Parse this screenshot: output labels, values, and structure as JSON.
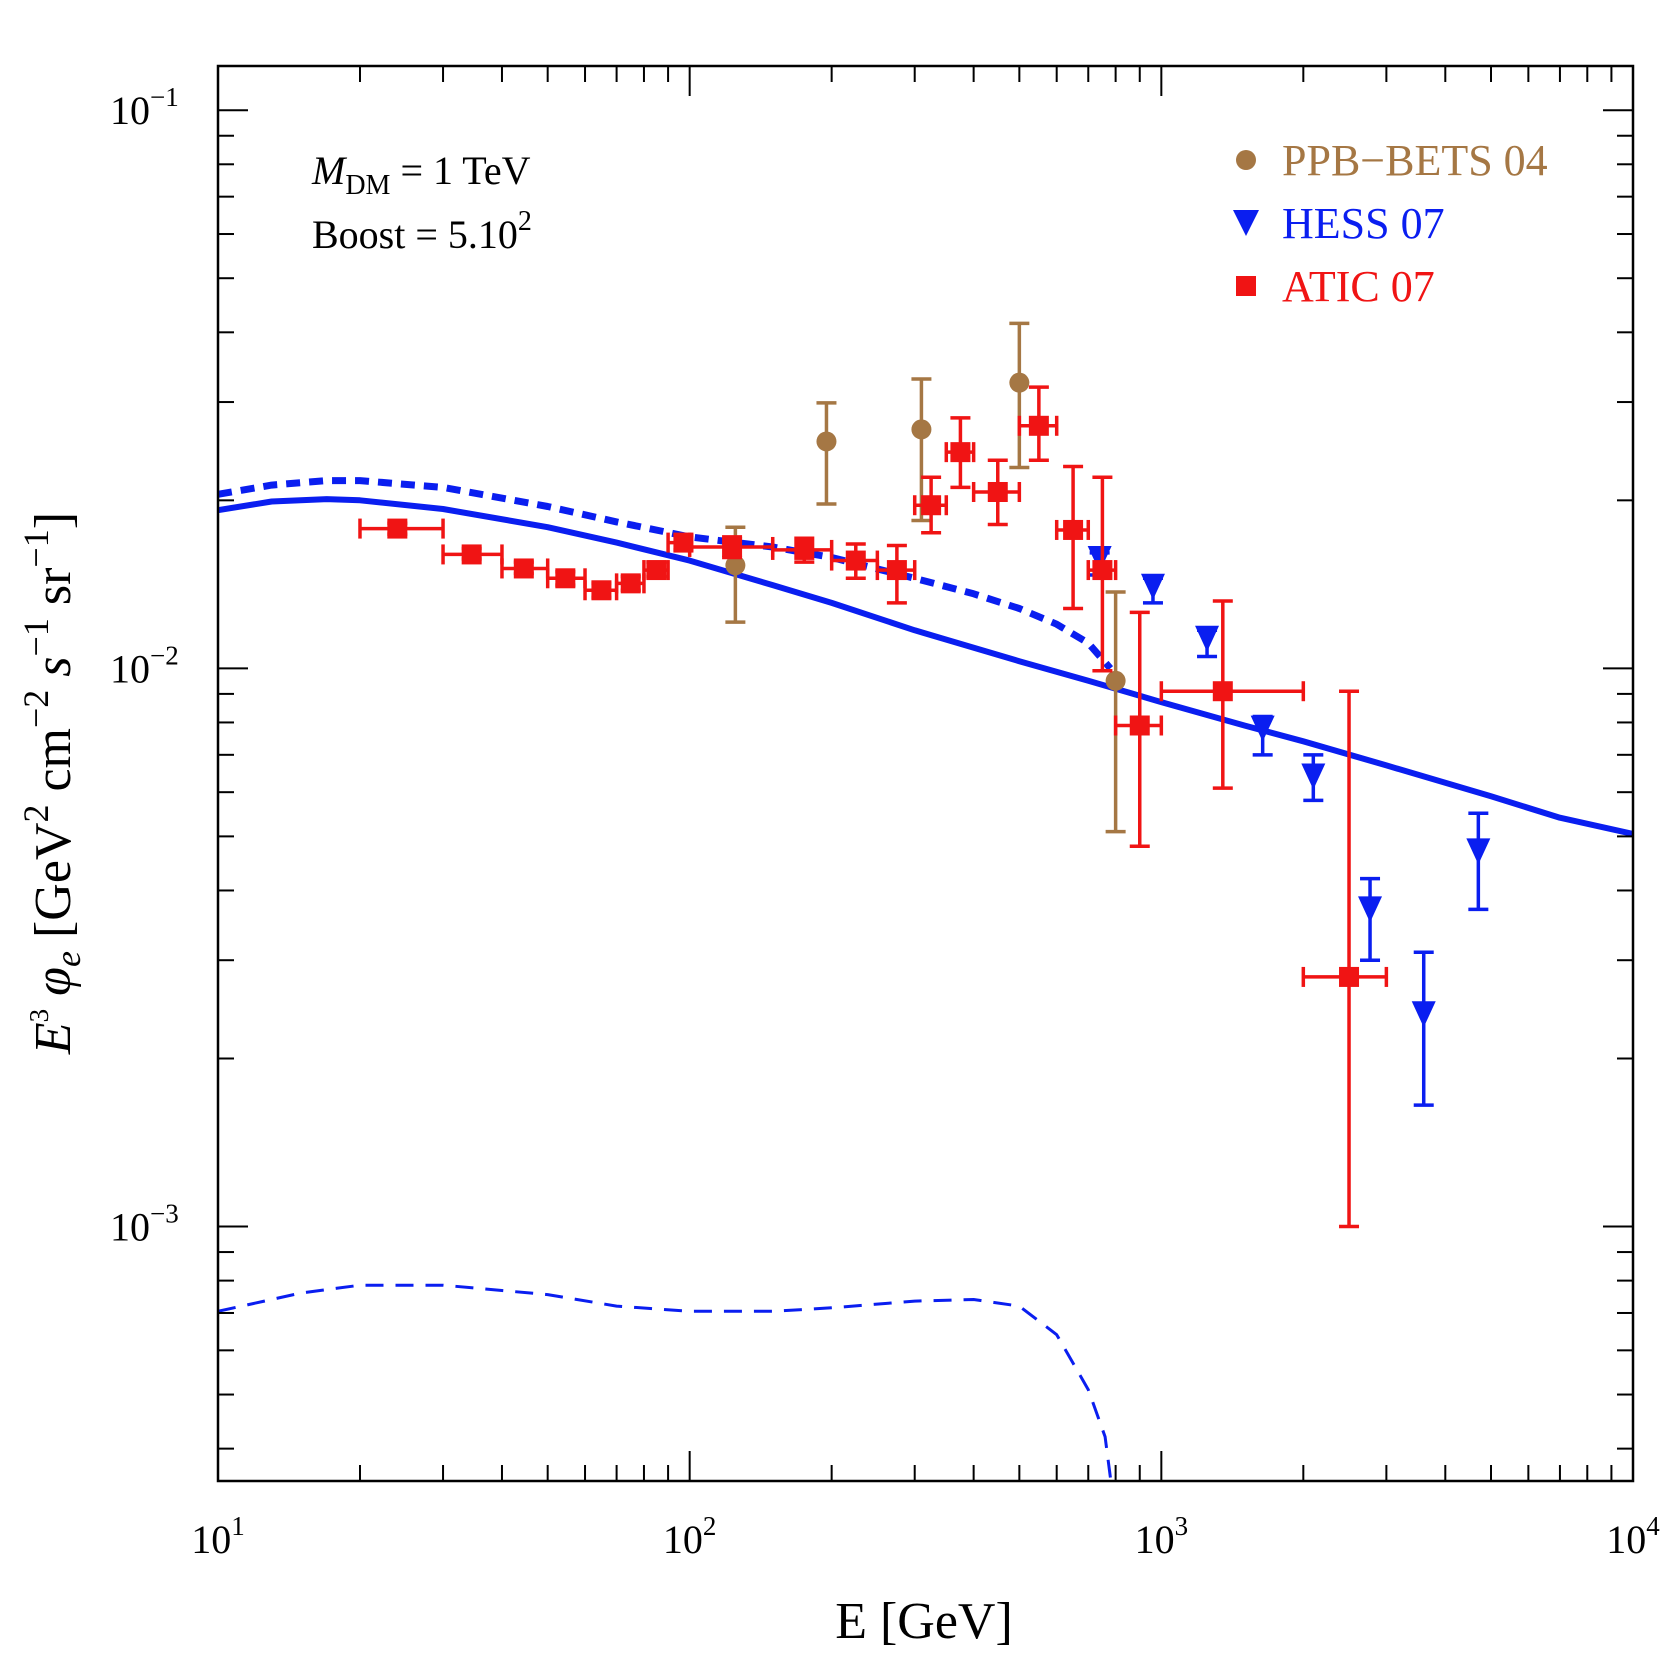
{
  "chart_data": {
    "type": "scatter",
    "x_scale": "log",
    "y_scale": "log",
    "xlim": [
      10,
      10000
    ],
    "ylim": [
      0.00035,
      0.12
    ],
    "grid": false,
    "legend_position": "top-right",
    "xlabel": "E [GeV]",
    "ylabel": {
      "E": "E",
      "e1": "3",
      "phi": " φ",
      "phisub": "e",
      "rest1": " [GeV",
      "e2": "2",
      "rest2": " cm",
      "e3": "−2",
      "s": " s",
      "e4": "−1",
      "rest3": " sr",
      "e5": "−1",
      "rest4": "]"
    },
    "x_ticks": [
      {
        "value": 10,
        "base": "10",
        "exp": "1"
      },
      {
        "value": 100,
        "base": "10",
        "exp": "2"
      },
      {
        "value": 1000,
        "base": "10",
        "exp": "3"
      },
      {
        "value": 10000,
        "base": "10",
        "exp": "4"
      }
    ],
    "y_ticks": [
      {
        "value": 0.1,
        "base": "10",
        "exp": "−1"
      },
      {
        "value": 0.01,
        "base": "10",
        "exp": "−2"
      },
      {
        "value": 0.001,
        "base": "10",
        "exp": "−3"
      }
    ],
    "annotations": {
      "line1": {
        "M": "M",
        "sub": "DM",
        "rest": " = 1 TeV"
      },
      "line2": {
        "text": "Boost = 5.10",
        "sup": "2"
      }
    },
    "series": [
      {
        "name": "PPB−BETS 04",
        "marker": "circle",
        "color": "#a57744",
        "points": [
          {
            "x": 125,
            "y": 0.0153,
            "ylo": 0.0121,
            "yhi": 0.0179
          },
          {
            "x": 195,
            "y": 0.0255,
            "ylo": 0.0197,
            "yhi": 0.0299
          },
          {
            "x": 310,
            "y": 0.0268,
            "ylo": 0.0184,
            "yhi": 0.033
          },
          {
            "x": 500,
            "y": 0.0325,
            "ylo": 0.0229,
            "yhi": 0.0415
          },
          {
            "x": 800,
            "y": 0.0095,
            "ylo": 0.0051,
            "yhi": 0.0137
          }
        ]
      },
      {
        "name": "HESS 07",
        "marker": "triangle-down",
        "color": "#0a1ef0",
        "points": [
          {
            "x": 740,
            "y": 0.0157,
            "ylo": 0.0147,
            "yhi": 0.0161
          },
          {
            "x": 960,
            "y": 0.014,
            "ylo": 0.0131,
            "yhi": 0.0145
          },
          {
            "x": 1250,
            "y": 0.0113,
            "ylo": 0.0105,
            "yhi": 0.0117
          },
          {
            "x": 1640,
            "y": 0.0078,
            "ylo": 0.007,
            "yhi": 0.0082
          },
          {
            "x": 2100,
            "y": 0.0064,
            "ylo": 0.0058,
            "yhi": 0.007
          },
          {
            "x": 2770,
            "y": 0.0037,
            "ylo": 0.003,
            "yhi": 0.0042
          },
          {
            "x": 3600,
            "y": 0.0024,
            "ylo": 0.00165,
            "yhi": 0.0031
          },
          {
            "x": 4700,
            "y": 0.0047,
            "ylo": 0.0037,
            "yhi": 0.0055
          }
        ]
      },
      {
        "name": "ATIC 07",
        "marker": "square",
        "color": "#f01414",
        "points": [
          {
            "x": 24,
            "y": 0.0178,
            "xlo": 20,
            "xhi": 30,
            "ylo": 0.0174,
            "yhi": 0.0182
          },
          {
            "x": 34.5,
            "y": 0.016,
            "xlo": 30,
            "xhi": 40,
            "ylo": 0.0157,
            "yhi": 0.0164
          },
          {
            "x": 44.5,
            "y": 0.0151,
            "xlo": 40,
            "xhi": 50,
            "ylo": 0.0148,
            "yhi": 0.0155
          },
          {
            "x": 54.5,
            "y": 0.0145,
            "xlo": 50,
            "xhi": 60,
            "ylo": 0.0141,
            "yhi": 0.0149
          },
          {
            "x": 65,
            "y": 0.0138,
            "xlo": 60,
            "xhi": 70,
            "ylo": 0.0134,
            "yhi": 0.0142
          },
          {
            "x": 75,
            "y": 0.0142,
            "xlo": 70,
            "xhi": 80,
            "ylo": 0.0138,
            "yhi": 0.0146
          },
          {
            "x": 85,
            "y": 0.015,
            "xlo": 80,
            "xhi": 90,
            "ylo": 0.0146,
            "yhi": 0.0155
          },
          {
            "x": 97,
            "y": 0.0168,
            "xlo": 90,
            "xhi": 100,
            "ylo": 0.0163,
            "yhi": 0.0173
          },
          {
            "x": 123,
            "y": 0.0165,
            "xlo": 100,
            "xhi": 150,
            "ylo": 0.0158,
            "yhi": 0.0172
          },
          {
            "x": 175,
            "y": 0.0163,
            "xlo": 150,
            "xhi": 200,
            "ylo": 0.0155,
            "yhi": 0.0171
          },
          {
            "x": 225,
            "y": 0.0156,
            "xlo": 200,
            "xhi": 250,
            "ylo": 0.0145,
            "yhi": 0.0167
          },
          {
            "x": 275,
            "y": 0.015,
            "xlo": 250,
            "xhi": 300,
            "ylo": 0.0131,
            "yhi": 0.0166
          },
          {
            "x": 325,
            "y": 0.0196,
            "xlo": 300,
            "xhi": 350,
            "ylo": 0.0175,
            "yhi": 0.022
          },
          {
            "x": 375,
            "y": 0.0244,
            "xlo": 350,
            "xhi": 400,
            "ylo": 0.0211,
            "yhi": 0.0281
          },
          {
            "x": 450,
            "y": 0.0207,
            "xlo": 400,
            "xhi": 500,
            "ylo": 0.0181,
            "yhi": 0.0236
          },
          {
            "x": 550,
            "y": 0.0272,
            "xlo": 500,
            "xhi": 600,
            "ylo": 0.0236,
            "yhi": 0.0319
          },
          {
            "x": 650,
            "y": 0.0177,
            "xlo": 600,
            "xhi": 700,
            "ylo": 0.0128,
            "yhi": 0.023
          },
          {
            "x": 750,
            "y": 0.015,
            "xlo": 700,
            "xhi": 800,
            "ylo": 0.0099,
            "yhi": 0.022
          },
          {
            "x": 900,
            "y": 0.0079,
            "xlo": 800,
            "xhi": 1000,
            "ylo": 0.0048,
            "yhi": 0.0126
          },
          {
            "x": 1350,
            "y": 0.0091,
            "xlo": 1000,
            "xhi": 2000,
            "ylo": 0.0061,
            "yhi": 0.0132
          },
          {
            "x": 2500,
            "y": 0.0028,
            "xlo": 2000,
            "xhi": 3000,
            "ylo": 0.001,
            "yhi": 0.0091
          }
        ]
      }
    ],
    "curves": [
      {
        "style": "solid",
        "width": 6,
        "color": "#0a1ef0",
        "points": [
          [
            10,
            0.0192
          ],
          [
            13,
            0.0199
          ],
          [
            17,
            0.0201
          ],
          [
            20,
            0.02
          ],
          [
            30,
            0.0193
          ],
          [
            50,
            0.0179
          ],
          [
            70,
            0.0168
          ],
          [
            100,
            0.0156
          ],
          [
            150,
            0.0141
          ],
          [
            200,
            0.0131
          ],
          [
            300,
            0.0117
          ],
          [
            500,
            0.0103
          ],
          [
            700,
            0.0095
          ],
          [
            1000,
            0.0087
          ],
          [
            1500,
            0.0079
          ],
          [
            2000,
            0.0074
          ],
          [
            3000,
            0.0067
          ],
          [
            5000,
            0.0059
          ],
          [
            7000,
            0.0054
          ],
          [
            10000,
            0.00505
          ]
        ]
      },
      {
        "style": "dashed",
        "width": 7,
        "color": "#0a1ef0",
        "points": [
          [
            10,
            0.0205
          ],
          [
            13,
            0.0213
          ],
          [
            17,
            0.0217
          ],
          [
            20,
            0.0217
          ],
          [
            30,
            0.0211
          ],
          [
            50,
            0.0195
          ],
          [
            70,
            0.0183
          ],
          [
            100,
            0.0172
          ],
          [
            150,
            0.0165
          ],
          [
            200,
            0.0158
          ],
          [
            300,
            0.0145
          ],
          [
            400,
            0.0136
          ],
          [
            500,
            0.0128
          ],
          [
            600,
            0.012
          ],
          [
            700,
            0.0111
          ],
          [
            780,
            0.01
          ]
        ]
      },
      {
        "style": "dashed-thin",
        "width": 3,
        "color": "#0a1ef0",
        "points": [
          [
            10,
            0.000705
          ],
          [
            15,
            0.00076
          ],
          [
            20,
            0.000785
          ],
          [
            30,
            0.000785
          ],
          [
            50,
            0.000755
          ],
          [
            70,
            0.00072
          ],
          [
            100,
            0.000705
          ],
          [
            150,
            0.000705
          ],
          [
            200,
            0.000715
          ],
          [
            300,
            0.000735
          ],
          [
            400,
            0.00074
          ],
          [
            500,
            0.00072
          ],
          [
            600,
            0.00064
          ],
          [
            700,
            0.00051
          ],
          [
            760,
            0.00042
          ],
          [
            780,
            0.000355
          ]
        ]
      }
    ]
  }
}
